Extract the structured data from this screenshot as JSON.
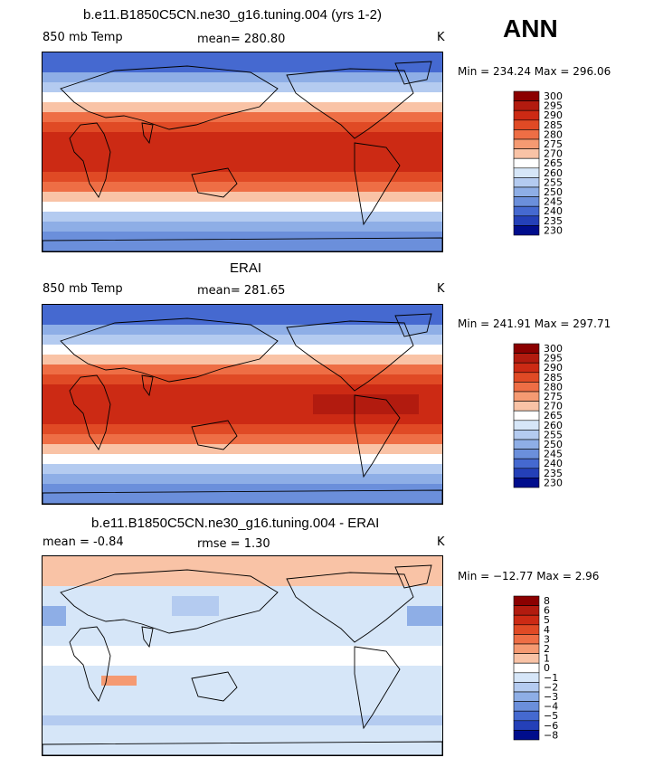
{
  "season": "ANN",
  "chart_data": [
    {
      "type": "heatmap",
      "title": "b.e11.B1850C5CN.ne30_g16.tuning.004 (yrs 1-2)",
      "variable": "850 mb Temp",
      "stat_label": "mean=",
      "stat_value": "280.80",
      "units": "K",
      "min_label": "Min = 234.24 Max = 296.06",
      "min": 234.24,
      "max": 296.06,
      "colorbar_levels": [
        "300",
        "295",
        "290",
        "285",
        "280",
        "275",
        "270",
        "265",
        "260",
        "255",
        "250",
        "245",
        "240",
        "235",
        "230"
      ],
      "colors": [
        "#8b0000",
        "#b21b0f",
        "#cc2a14",
        "#e04a25",
        "#ee6e45",
        "#f59a72",
        "#f9c3a6",
        "#ffffff",
        "#d6e6f8",
        "#b4cbf0",
        "#8eaee6",
        "#6b8fdb",
        "#4569d0",
        "#2440b8",
        "#000d8c"
      ]
    },
    {
      "type": "heatmap",
      "title": "ERAI",
      "variable": "850 mb Temp",
      "stat_label": "mean=",
      "stat_value": "281.65",
      "units": "K",
      "min_label": "Min = 241.91 Max = 297.71",
      "min": 241.91,
      "max": 297.71,
      "colorbar_levels": [
        "300",
        "295",
        "290",
        "285",
        "280",
        "275",
        "270",
        "265",
        "260",
        "255",
        "250",
        "245",
        "240",
        "235",
        "230"
      ],
      "colors": [
        "#8b0000",
        "#b21b0f",
        "#cc2a14",
        "#e04a25",
        "#ee6e45",
        "#f59a72",
        "#f9c3a6",
        "#ffffff",
        "#d6e6f8",
        "#b4cbf0",
        "#8eaee6",
        "#6b8fdb",
        "#4569d0",
        "#2440b8",
        "#000d8c"
      ]
    },
    {
      "type": "heatmap",
      "title": "b.e11.B1850C5CN.ne30_g16.tuning.004 - ERAI",
      "variable": "mean =",
      "stat_label": "rmse =",
      "stat_value": "1.30",
      "mean_value": "-0.84",
      "units": "K",
      "min_label": "Min = −12.77 Max =   2.96",
      "min": -12.77,
      "max": 2.96,
      "colorbar_levels": [
        "8",
        "6",
        "5",
        "4",
        "3",
        "2",
        "1",
        "0",
        "−1",
        "−2",
        "−3",
        "−4",
        "−5",
        "−6",
        "−8"
      ],
      "colors": [
        "#8b0000",
        "#b21b0f",
        "#cc2a14",
        "#e04a25",
        "#ee6e45",
        "#f59a72",
        "#f9c3a6",
        "#ffffff",
        "#d6e6f8",
        "#b4cbf0",
        "#8eaee6",
        "#6b8fdb",
        "#4569d0",
        "#2440b8",
        "#000d8c"
      ]
    }
  ]
}
